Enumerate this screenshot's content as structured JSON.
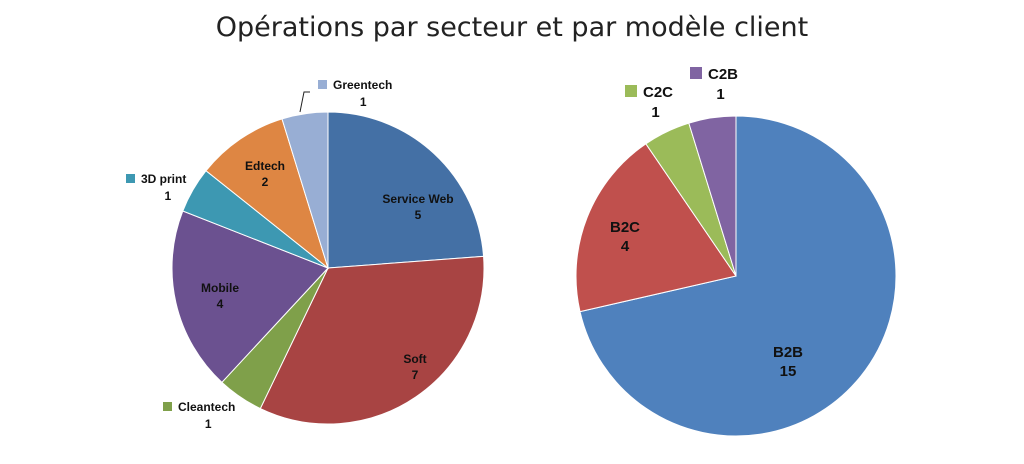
{
  "title": "Opérations par secteur et par modèle client",
  "chart_data": [
    {
      "type": "pie",
      "slices": [
        {
          "label": "Service Web",
          "value": 5,
          "color": "#4470A5"
        },
        {
          "label": "Soft",
          "value": 7,
          "color": "#A84443"
        },
        {
          "label": "Cleantech",
          "value": 1,
          "color": "#7FA04A"
        },
        {
          "label": "Mobile",
          "value": 4,
          "color": "#6B5190"
        },
        {
          "label": "3D print",
          "value": 1,
          "color": "#3D98B2"
        },
        {
          "label": "Edtech",
          "value": 2,
          "color": "#DE8643"
        },
        {
          "label": "Greentech",
          "value": 1,
          "color": "#98AED4"
        }
      ]
    },
    {
      "type": "pie",
      "slices": [
        {
          "label": "B2B",
          "value": 15,
          "color": "#4F81BD"
        },
        {
          "label": "B2C",
          "value": 4,
          "color": "#C0504D"
        },
        {
          "label": "C2C",
          "value": 1,
          "color": "#9BBB59"
        },
        {
          "label": "C2B",
          "value": 1,
          "color": "#8064A2"
        }
      ]
    }
  ]
}
